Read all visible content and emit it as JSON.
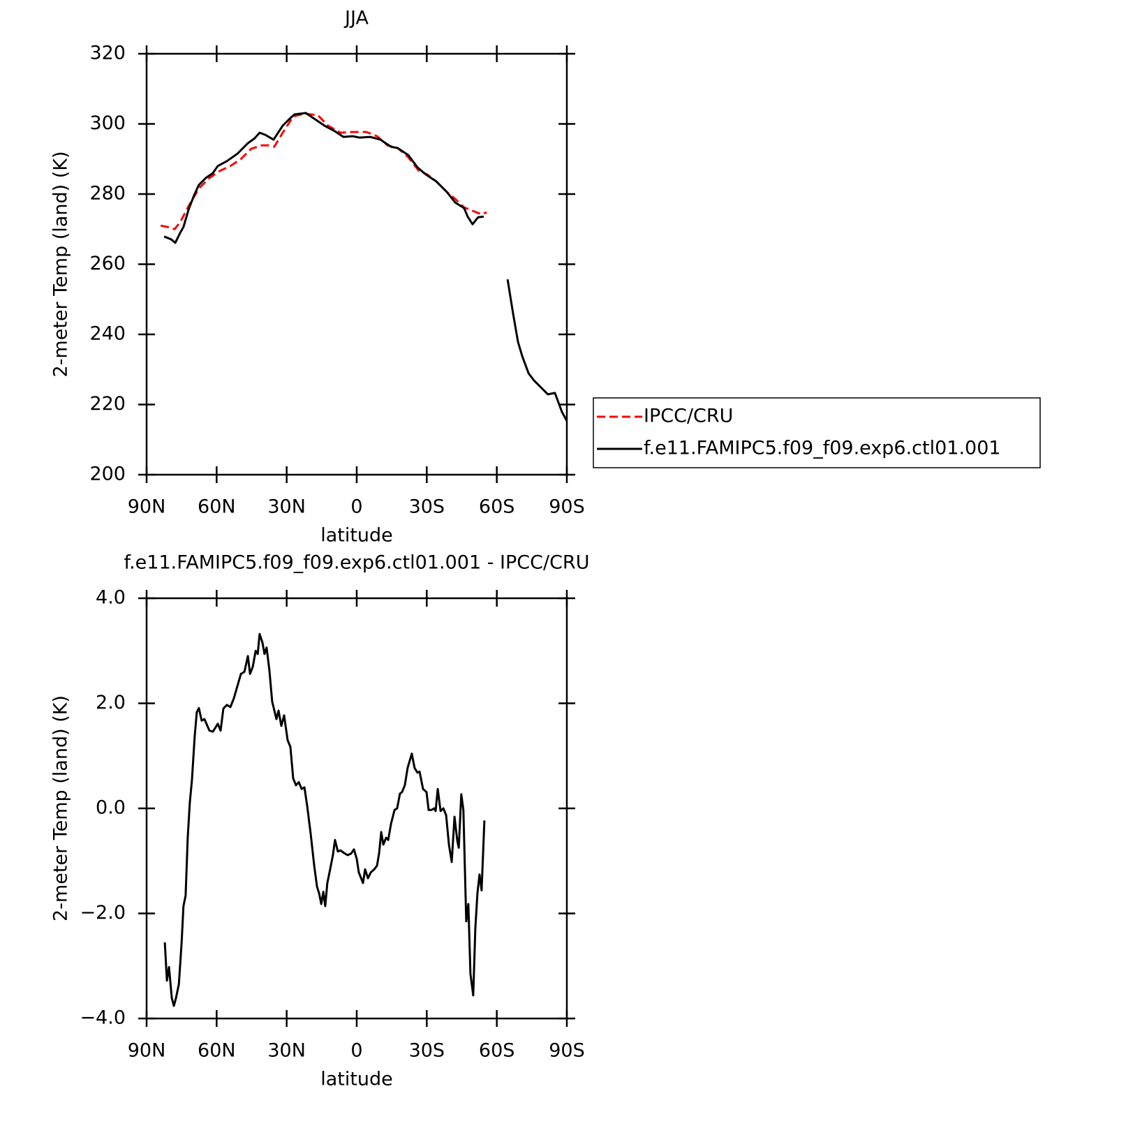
{
  "chart_data": [
    {
      "type": "line",
      "title": "JJA",
      "xlabel": "latitude",
      "ylabel": "2-meter Temp (land) (K)",
      "xlim": [
        90,
        -90
      ],
      "ylim": [
        200,
        320
      ],
      "xticks": [
        {
          "value": 90,
          "label": "90N"
        },
        {
          "value": 60,
          "label": "60N"
        },
        {
          "value": 30,
          "label": "30N"
        },
        0,
        {
          "value": -30,
          "label": "30S"
        },
        {
          "value": -60,
          "label": "60S"
        },
        {
          "value": -90,
          "label": "90S"
        }
      ],
      "yticks": [
        200,
        220,
        240,
        260,
        280,
        300,
        320
      ],
      "legend": "right",
      "series": [
        {
          "name": "IPCC/CRU",
          "color": "#ff0000",
          "dash": true,
          "x": [
            84,
            81,
            78,
            75.6,
            72,
            67.6,
            63.1,
            58.6,
            54.1,
            49.6,
            45.2,
            40.7,
            37.7,
            35.3,
            31.7,
            27.2,
            22.7,
            16.7,
            12.3,
            6.9,
            1.8,
            -4.2,
            -8.7,
            -13.2,
            -17.6,
            -22.1,
            -26.6,
            -30.2,
            -34.1,
            -38.6,
            -42.2,
            -46,
            -50.5,
            -53.5,
            -55.6
          ],
          "values": [
            271,
            270.6,
            270,
            272,
            276.6,
            281.6,
            284.6,
            286.6,
            288,
            290,
            292.9,
            293.9,
            293.9,
            293.5,
            297.5,
            302.1,
            302.9,
            302.5,
            299.5,
            297.5,
            297.7,
            297.7,
            296.5,
            293.9,
            293.1,
            290.5,
            286.6,
            285.6,
            283.6,
            280.6,
            278.6,
            276.2,
            275,
            274.2,
            274.8
          ]
        },
        {
          "name": "f.e11.FAMIPC5.f09_f09.exp6.ctl01.001",
          "color": "#000000",
          "dash": false,
          "x": [
            82.5,
            79.5,
            77.7,
            75.6,
            74.2,
            72,
            69.7,
            67.6,
            64.6,
            61.6,
            59.5,
            55.6,
            51.1,
            46.6,
            43.7,
            41.6,
            39.2,
            35.6,
            31.7,
            28.7,
            26.6,
            24.2,
            21.8,
            18.2,
            13.8,
            9.3,
            5.7,
            1.8,
            -1.2,
            -5.7,
            -10.2,
            -14.7,
            -17.6,
            -22.1,
            -26,
            -29.6,
            -34.1,
            -38.6,
            -42.2,
            -46,
            -47.5,
            -49.6,
            -52,
            -54.4,
            null,
            -64.6,
            -67,
            -69.1,
            -70.9,
            -73.6,
            -75.9,
            -78.9,
            -81.9,
            -84.9,
            -87.9,
            -90
          ],
          "values": [
            267.9,
            267.1,
            266.1,
            269,
            270.6,
            275.6,
            279.6,
            282.6,
            284.6,
            286,
            288,
            289.4,
            291.5,
            294.5,
            295.9,
            297.5,
            296.9,
            295.5,
            299.5,
            301.5,
            302.7,
            302.9,
            303.1,
            301.5,
            299.5,
            297.9,
            296.3,
            296.5,
            296.1,
            296.3,
            295.5,
            293.5,
            293.1,
            291.1,
            287.6,
            285.6,
            283.6,
            280.6,
            277.6,
            276,
            273.6,
            271.4,
            273.4,
            273.6,
            null,
            255.7,
            245.8,
            237.8,
            233.8,
            228.9,
            226.9,
            224.9,
            222.9,
            223.3,
            217.9,
            215.3
          ]
        }
      ]
    },
    {
      "type": "line",
      "title": "f.e11.FAMIPC5.f09_f09.exp6.ctl01.001 - IPCC/CRU",
      "xlabel": "latitude",
      "ylabel": "2-meter Temp (land) (K)",
      "xlim": [
        90,
        -90
      ],
      "ylim": [
        -4,
        4
      ],
      "xticks": [
        {
          "value": 90,
          "label": "90N"
        },
        {
          "value": 60,
          "label": "60N"
        },
        {
          "value": 30,
          "label": "30N"
        },
        0,
        {
          "value": -30,
          "label": "30S"
        },
        {
          "value": -60,
          "label": "60S"
        },
        {
          "value": -90,
          "label": "90S"
        }
      ],
      "yticks": [
        {
          "value": -4,
          "label": "−4.0"
        },
        {
          "value": -2,
          "label": "−2.0"
        },
        {
          "value": 0,
          "label": "0.0"
        },
        {
          "value": 2,
          "label": "2.0"
        },
        {
          "value": 4,
          "label": "4.0"
        }
      ],
      "series": [
        {
          "color": "#000000",
          "dash": false,
          "x": [
            82.2,
            81.3,
            80.4,
            79.2,
            78.3,
            77.4,
            76.2,
            75,
            74.2,
            73.3,
            72.4,
            71.5,
            70.6,
            69.4,
            68.5,
            67.6,
            66.4,
            65.2,
            63.1,
            61.6,
            59.5,
            58.3,
            57.1,
            55.6,
            54.1,
            52.6,
            49.6,
            48.1,
            46.6,
            45.7,
            44.5,
            43.3,
            42.4,
            41.6,
            40.4,
            39.5,
            38.6,
            37.4,
            36.2,
            34.4,
            33.5,
            32.3,
            31.1,
            29.6,
            28.4,
            27.2,
            26,
            24.8,
            23.6,
            22.4,
            21.2,
            19.7,
            18.2,
            17,
            16.1,
            15.2,
            14.3,
            13.5,
            12.6,
            11.4,
            10.2,
            9.3,
            8.1,
            6.9,
            5.4,
            3.9,
            2.4,
            1.2,
            0,
            -0.9,
            -1.8,
            -2.7,
            -3.6,
            -4.8,
            -6,
            -7.5,
            -8.7,
            -9.6,
            -10.5,
            -11.4,
            -12.6,
            -13.5,
            -14.7,
            -16.2,
            -17.3,
            -18.5,
            -19.4,
            -20.6,
            -21.8,
            -23.6,
            -24.8,
            -26,
            -26.9,
            -28.4,
            -29.9,
            -30.8,
            -32,
            -33.2,
            -33.8,
            -34.7,
            -35.9,
            -37.1,
            -38.3,
            -39.5,
            -40.7,
            -41.9,
            -43.1,
            -43.7,
            -44.8,
            -45.7,
            -46.9,
            -47.8,
            -48.7,
            -49.9,
            -50.8,
            -51.7,
            -52.6,
            -53.5,
            -54.7
          ],
          "values": [
            -2.55,
            -3.28,
            -3.02,
            -3.61,
            -3.76,
            -3.61,
            -3.35,
            -2.55,
            -1.86,
            -1.66,
            -0.56,
            0.11,
            0.53,
            1.37,
            1.83,
            1.91,
            1.67,
            1.7,
            1.48,
            1.46,
            1.61,
            1.48,
            1.9,
            1.97,
            1.93,
            2.1,
            2.56,
            2.6,
            2.9,
            2.56,
            2.7,
            3.0,
            2.94,
            3.32,
            3.16,
            2.94,
            3.06,
            2.63,
            2.03,
            1.7,
            1.86,
            1.57,
            1.77,
            1.3,
            1.17,
            0.57,
            0.44,
            0.5,
            0.37,
            0.4,
            0.04,
            -0.49,
            -1.09,
            -1.49,
            -1.62,
            -1.82,
            -1.59,
            -1.86,
            -1.42,
            -1.16,
            -0.89,
            -0.6,
            -0.82,
            -0.8,
            -0.85,
            -0.89,
            -0.86,
            -0.78,
            -0.96,
            -1.22,
            -1.32,
            -1.42,
            -1.16,
            -1.33,
            -1.22,
            -1.16,
            -1.09,
            -0.85,
            -0.45,
            -0.69,
            -0.56,
            -0.6,
            -0.29,
            -0.03,
            0.0,
            0.28,
            0.31,
            0.44,
            0.77,
            1.04,
            0.77,
            0.68,
            0.7,
            0.37,
            0.31,
            -0.03,
            -0.03,
            0.0,
            -0.05,
            0.37,
            -0.05,
            0.0,
            -0.13,
            -0.69,
            -1.02,
            -0.16,
            -0.62,
            -0.75,
            0.27,
            -0.03,
            -2.15,
            -1.82,
            -3.15,
            -3.56,
            -2.29,
            -1.62,
            -1.26,
            -1.56,
            -0.23
          ]
        }
      ]
    }
  ]
}
